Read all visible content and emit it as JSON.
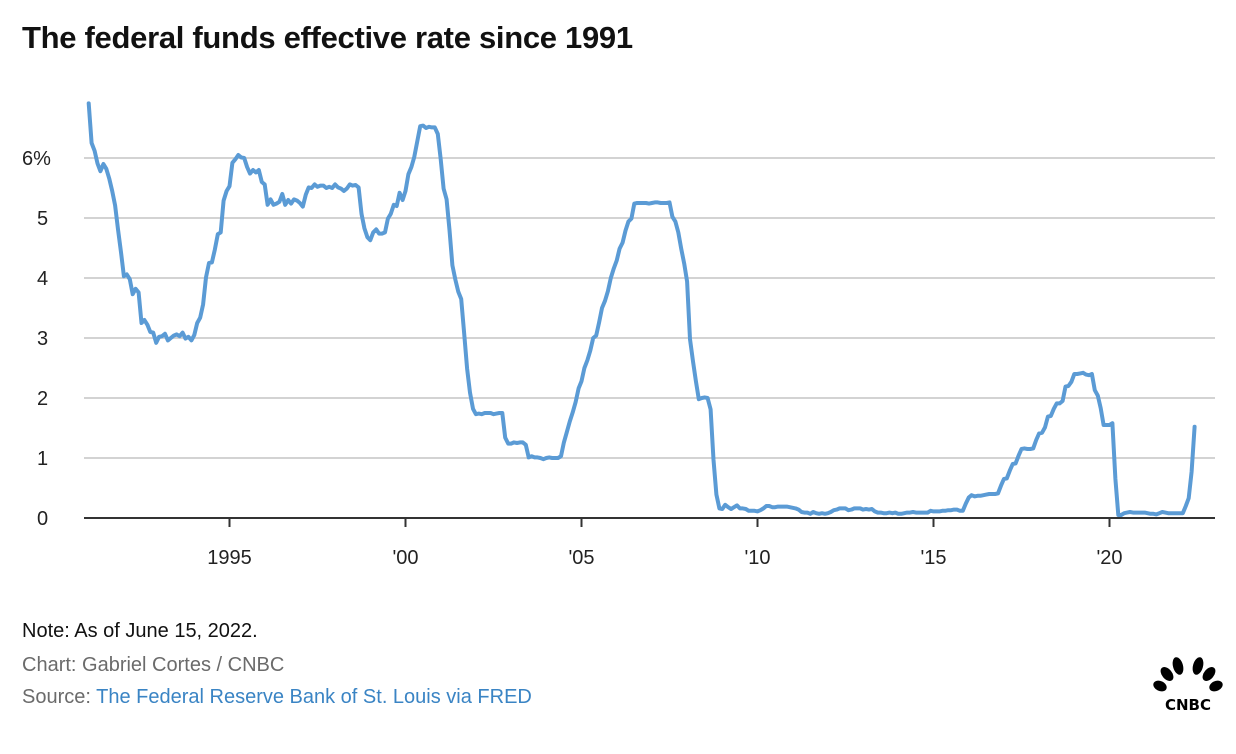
{
  "title": "The federal funds effective rate since 1991",
  "footer": {
    "note": "Note: As of June 15, 2022.",
    "credit": "Chart: Gabriel Cortes / CNBC",
    "source_label": "Source: ",
    "source_link": "The Federal Reserve Bank of St. Louis via FRED"
  },
  "logo": {
    "text": "CNBC"
  },
  "chart_data": {
    "type": "line",
    "title": "The federal funds effective rate since 1991",
    "xlabel": "",
    "ylabel": "",
    "ylim": [
      0,
      6.9
    ],
    "xlim": [
      "1991-01",
      "2022-12"
    ],
    "grid": true,
    "line_color": "#5b9bd5",
    "y_ticks": [
      {
        "value": 0,
        "label": "0"
      },
      {
        "value": 1,
        "label": "1"
      },
      {
        "value": 2,
        "label": "2"
      },
      {
        "value": 3,
        "label": "3"
      },
      {
        "value": 4,
        "label": "4"
      },
      {
        "value": 5,
        "label": "5"
      },
      {
        "value": 6,
        "label": "6%"
      }
    ],
    "x_ticks": [
      {
        "value": 1995,
        "label": "1995"
      },
      {
        "value": 2000,
        "label": "'00"
      },
      {
        "value": 2005,
        "label": "'05"
      },
      {
        "value": 2010,
        "label": "'10"
      },
      {
        "value": 2015,
        "label": "'15"
      },
      {
        "value": 2020,
        "label": "'20"
      }
    ],
    "frequency": "monthly",
    "series": [
      {
        "data": {
          "1991": [
            6.91,
            6.25,
            6.12,
            5.91,
            5.78,
            5.9,
            5.82,
            5.66,
            5.45,
            5.21,
            4.81,
            4.43
          ],
          "1992": [
            4.03,
            4.06,
            3.98,
            3.73,
            3.82,
            3.76,
            3.25,
            3.3,
            3.22,
            3.1,
            3.09,
            2.92
          ],
          "1993": [
            3.02,
            3.03,
            3.07,
            2.96,
            3.0,
            3.04,
            3.06,
            3.03,
            3.09,
            2.99,
            3.02,
            2.96
          ],
          "1994": [
            3.05,
            3.25,
            3.34,
            3.56,
            4.01,
            4.25,
            4.26,
            4.47,
            4.73,
            4.76,
            5.29,
            5.45
          ],
          "1995": [
            5.53,
            5.92,
            5.98,
            6.05,
            6.01,
            6.0,
            5.85,
            5.74,
            5.8,
            5.76,
            5.8,
            5.6
          ],
          "1996": [
            5.56,
            5.22,
            5.31,
            5.22,
            5.24,
            5.27,
            5.4,
            5.22,
            5.3,
            5.24,
            5.31,
            5.29
          ],
          "1997": [
            5.25,
            5.19,
            5.39,
            5.51,
            5.5,
            5.56,
            5.52,
            5.54,
            5.54,
            5.5,
            5.52,
            5.5
          ],
          "1998": [
            5.56,
            5.51,
            5.49,
            5.45,
            5.49,
            5.56,
            5.54,
            5.55,
            5.51,
            5.07,
            4.83,
            4.68
          ],
          "1999": [
            4.63,
            4.76,
            4.81,
            4.74,
            4.74,
            4.76,
            4.99,
            5.07,
            5.22,
            5.2,
            5.42,
            5.3
          ],
          "2000": [
            5.45,
            5.73,
            5.85,
            6.02,
            6.27,
            6.53,
            6.54,
            6.5,
            6.52,
            6.51,
            6.51,
            6.4
          ],
          "2001": [
            5.98,
            5.49,
            5.31,
            4.8,
            4.21,
            3.97,
            3.77,
            3.65,
            3.07,
            2.49,
            2.09,
            1.82
          ],
          "2002": [
            1.73,
            1.74,
            1.73,
            1.75,
            1.75,
            1.75,
            1.73,
            1.74,
            1.75,
            1.75,
            1.34,
            1.24
          ],
          "2003": [
            1.24,
            1.26,
            1.25,
            1.26,
            1.26,
            1.22,
            1.01,
            1.03,
            1.01,
            1.01,
            1.0,
            0.98
          ],
          "2004": [
            1.0,
            1.01,
            1.0,
            1.0,
            1.0,
            1.03,
            1.26,
            1.43,
            1.61,
            1.76,
            1.93,
            2.16
          ],
          "2005": [
            2.28,
            2.5,
            2.63,
            2.79,
            3.0,
            3.04,
            3.26,
            3.5,
            3.62,
            3.78,
            4.0,
            4.16
          ],
          "2006": [
            4.29,
            4.49,
            4.59,
            4.79,
            4.94,
            4.99,
            5.24,
            5.25,
            5.25,
            5.25,
            5.25,
            5.24
          ],
          "2007": [
            5.25,
            5.26,
            5.26,
            5.25,
            5.25,
            5.25,
            5.26,
            5.02,
            4.94,
            4.76,
            4.49,
            4.24
          ],
          "2008": [
            3.94,
            2.98,
            2.61,
            2.28,
            1.98,
            2.0,
            2.01,
            2.0,
            1.81,
            0.97,
            0.39,
            0.16
          ],
          "2009": [
            0.15,
            0.22,
            0.18,
            0.15,
            0.18,
            0.21,
            0.16,
            0.16,
            0.15,
            0.12,
            0.12,
            0.12
          ],
          "2010": [
            0.11,
            0.13,
            0.16,
            0.2,
            0.2,
            0.18,
            0.18,
            0.19,
            0.19,
            0.19,
            0.19,
            0.18
          ],
          "2011": [
            0.17,
            0.16,
            0.14,
            0.1,
            0.09,
            0.09,
            0.07,
            0.1,
            0.08,
            0.07,
            0.08,
            0.07
          ],
          "2012": [
            0.08,
            0.1,
            0.13,
            0.14,
            0.16,
            0.16,
            0.16,
            0.13,
            0.14,
            0.16,
            0.16,
            0.16
          ],
          "2013": [
            0.14,
            0.15,
            0.14,
            0.15,
            0.11,
            0.09,
            0.09,
            0.08,
            0.08,
            0.09,
            0.08,
            0.09
          ],
          "2014": [
            0.07,
            0.07,
            0.08,
            0.09,
            0.09,
            0.1,
            0.09,
            0.09,
            0.09,
            0.09,
            0.09,
            0.12
          ],
          "2015": [
            0.11,
            0.11,
            0.11,
            0.12,
            0.12,
            0.13,
            0.13,
            0.14,
            0.14,
            0.12,
            0.12,
            0.24
          ],
          "2016": [
            0.34,
            0.38,
            0.36,
            0.37,
            0.37,
            0.38,
            0.39,
            0.4,
            0.4,
            0.4,
            0.41,
            0.54
          ],
          "2017": [
            0.65,
            0.66,
            0.79,
            0.9,
            0.91,
            1.04,
            1.15,
            1.16,
            1.15,
            1.15,
            1.16,
            1.3
          ],
          "2018": [
            1.41,
            1.42,
            1.51,
            1.69,
            1.7,
            1.82,
            1.91,
            1.91,
            1.95,
            2.19,
            2.2,
            2.27
          ],
          "2019": [
            2.4,
            2.4,
            2.41,
            2.42,
            2.39,
            2.38,
            2.4,
            2.13,
            2.04,
            1.83,
            1.55,
            1.55
          ],
          "2020": [
            1.55,
            1.58,
            0.65,
            0.05,
            0.05,
            0.08,
            0.09,
            0.1,
            0.09,
            0.09,
            0.09,
            0.09
          ],
          "2021": [
            0.09,
            0.08,
            0.07,
            0.07,
            0.06,
            0.08,
            0.1,
            0.09,
            0.08,
            0.08,
            0.08,
            0.08
          ],
          "2022": [
            0.08,
            0.08,
            0.2,
            0.33,
            0.77,
            1.52
          ]
        }
      }
    ]
  }
}
